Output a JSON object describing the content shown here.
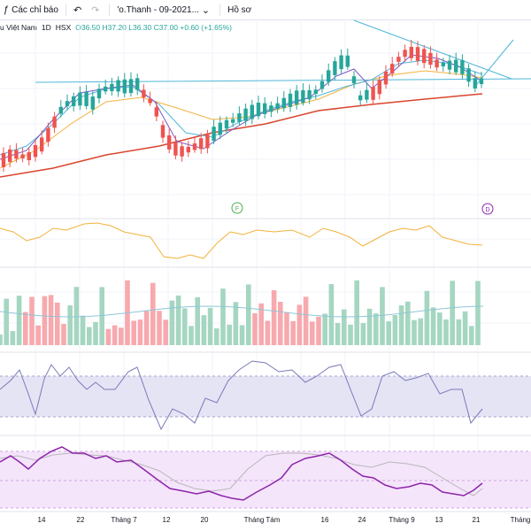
{
  "toolbar": {
    "indicators_label": "Các chỉ báo",
    "undo_icon": "undo-icon",
    "redo_icon": "redo-icon",
    "layout_name": "'o.Thanh - 09-2021...",
    "profile_label": "Hồ sơ"
  },
  "legend": {
    "symbol_name": "u Việt Nam",
    "interval": "1D",
    "exchange": "HSX",
    "ohlc": "O36.50 H37.20 L36.30 C37.00 +0.60 (+1.65%)"
  },
  "markers": {
    "f_marker": "F",
    "d_marker": "D"
  },
  "time_axis": {
    "labels": [
      "14",
      "22",
      "Tháng 7",
      "12",
      "20",
      "Tháng Tám",
      "16",
      "24",
      "Tháng 9",
      "13",
      "21",
      "Tháng"
    ]
  },
  "colors": {
    "up": "#a5d6c1",
    "down": "#f7a9ae",
    "up_candle": "#26a69a",
    "down_candle": "#ef5350",
    "ma_red": "#d9452d",
    "ma_orange": "#f3b23c",
    "ma_blue": "#4fb6d8",
    "ma_purple": "#7b57c7",
    "rsi_band": "#e5e4f5",
    "stoch_band": "#f4e5fb",
    "stoch_k": "#8e24aa"
  }
}
